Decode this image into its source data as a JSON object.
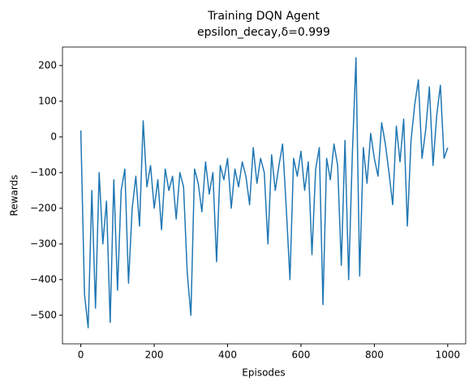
{
  "chart_data": {
    "type": "line",
    "title": "Training DQN Agent",
    "subtitle": "epsilon_decay,δ=0.999",
    "x_label": "Episodes",
    "y_label": "Rewards",
    "x": [
      0,
      10,
      20,
      30,
      40,
      50,
      60,
      70,
      80,
      90,
      100,
      110,
      120,
      130,
      140,
      150,
      160,
      170,
      180,
      190,
      200,
      210,
      220,
      230,
      240,
      250,
      260,
      270,
      280,
      290,
      300,
      310,
      320,
      330,
      340,
      350,
      360,
      370,
      380,
      390,
      400,
      410,
      420,
      430,
      440,
      450,
      460,
      470,
      480,
      490,
      500,
      510,
      520,
      530,
      540,
      550,
      560,
      570,
      580,
      590,
      600,
      610,
      620,
      630,
      640,
      650,
      660,
      670,
      680,
      690,
      700,
      710,
      720,
      730,
      740,
      750,
      760,
      770,
      780,
      790,
      800,
      810,
      820,
      830,
      840,
      850,
      860,
      870,
      880,
      890,
      900,
      910,
      920,
      930,
      940,
      950,
      960,
      970,
      980,
      990,
      1000
    ],
    "series": [
      {
        "name": "Rewards",
        "color": "#1f77b4",
        "values": [
          18,
          -440,
          -535,
          -150,
          -480,
          -100,
          -300,
          -180,
          -520,
          -120,
          -430,
          -150,
          -90,
          -410,
          -200,
          -110,
          -250,
          45,
          -140,
          -80,
          -200,
          -120,
          -260,
          -90,
          -150,
          -110,
          -230,
          -100,
          -140,
          -380,
          -500,
          -90,
          -130,
          -210,
          -70,
          -160,
          -100,
          -350,
          -80,
          -120,
          -60,
          -200,
          -90,
          -140,
          -70,
          -110,
          -190,
          -30,
          -130,
          -60,
          -100,
          -300,
          -50,
          -150,
          -80,
          -20,
          -200,
          -400,
          -60,
          -110,
          -40,
          -150,
          -70,
          -330,
          -90,
          -30,
          -470,
          -60,
          -120,
          -20,
          -80,
          -360,
          -10,
          -400,
          -50,
          222,
          -390,
          -30,
          -130,
          10,
          -60,
          -110,
          40,
          -20,
          -100,
          -190,
          30,
          -70,
          50,
          -250,
          -10,
          90,
          160,
          -60,
          20,
          140,
          -80,
          60,
          145,
          -60,
          -30
        ]
      }
    ],
    "xlim": [
      -50,
      1049
    ],
    "ylim": [
      -580,
      252
    ],
    "xticks": [
      0,
      200,
      400,
      600,
      800,
      1000
    ],
    "yticks": [
      {
        "value": -500,
        "label": "−500"
      },
      {
        "value": -400,
        "label": "−400"
      },
      {
        "value": -300,
        "label": "−300"
      },
      {
        "value": -200,
        "label": "−200"
      },
      {
        "value": -100,
        "label": "−100"
      },
      0,
      100,
      200
    ],
    "grid": false
  }
}
